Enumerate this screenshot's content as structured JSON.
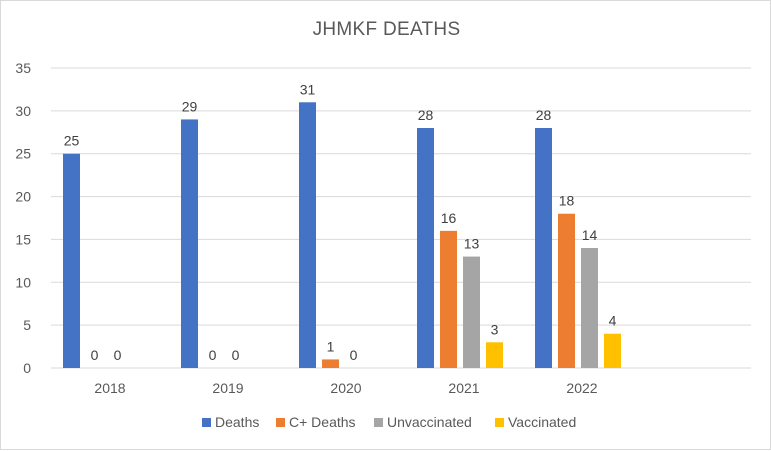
{
  "chart_data": {
    "type": "bar",
    "title": "JHMKF DEATHS",
    "categories": [
      "2018",
      "2019",
      "2020",
      "2021",
      "2022"
    ],
    "series": [
      {
        "name": "Deaths",
        "color": "#4472C4",
        "values": [
          25,
          29,
          31,
          28,
          28
        ]
      },
      {
        "name": "C+ Deaths",
        "color": "#ED7D31",
        "values": [
          0,
          0,
          1,
          16,
          18
        ]
      },
      {
        "name": "Unvaccinated",
        "color": "#A5A5A5",
        "values": [
          0,
          0,
          0,
          13,
          14
        ]
      },
      {
        "name": "Vaccinated",
        "color": "#FFC000",
        "values": [
          null,
          null,
          null,
          3,
          4
        ]
      }
    ],
    "ylim": [
      0,
      35
    ],
    "yticks": [
      0,
      5,
      10,
      15,
      20,
      25,
      30,
      35
    ],
    "grid": true,
    "legend_position": "bottom"
  }
}
